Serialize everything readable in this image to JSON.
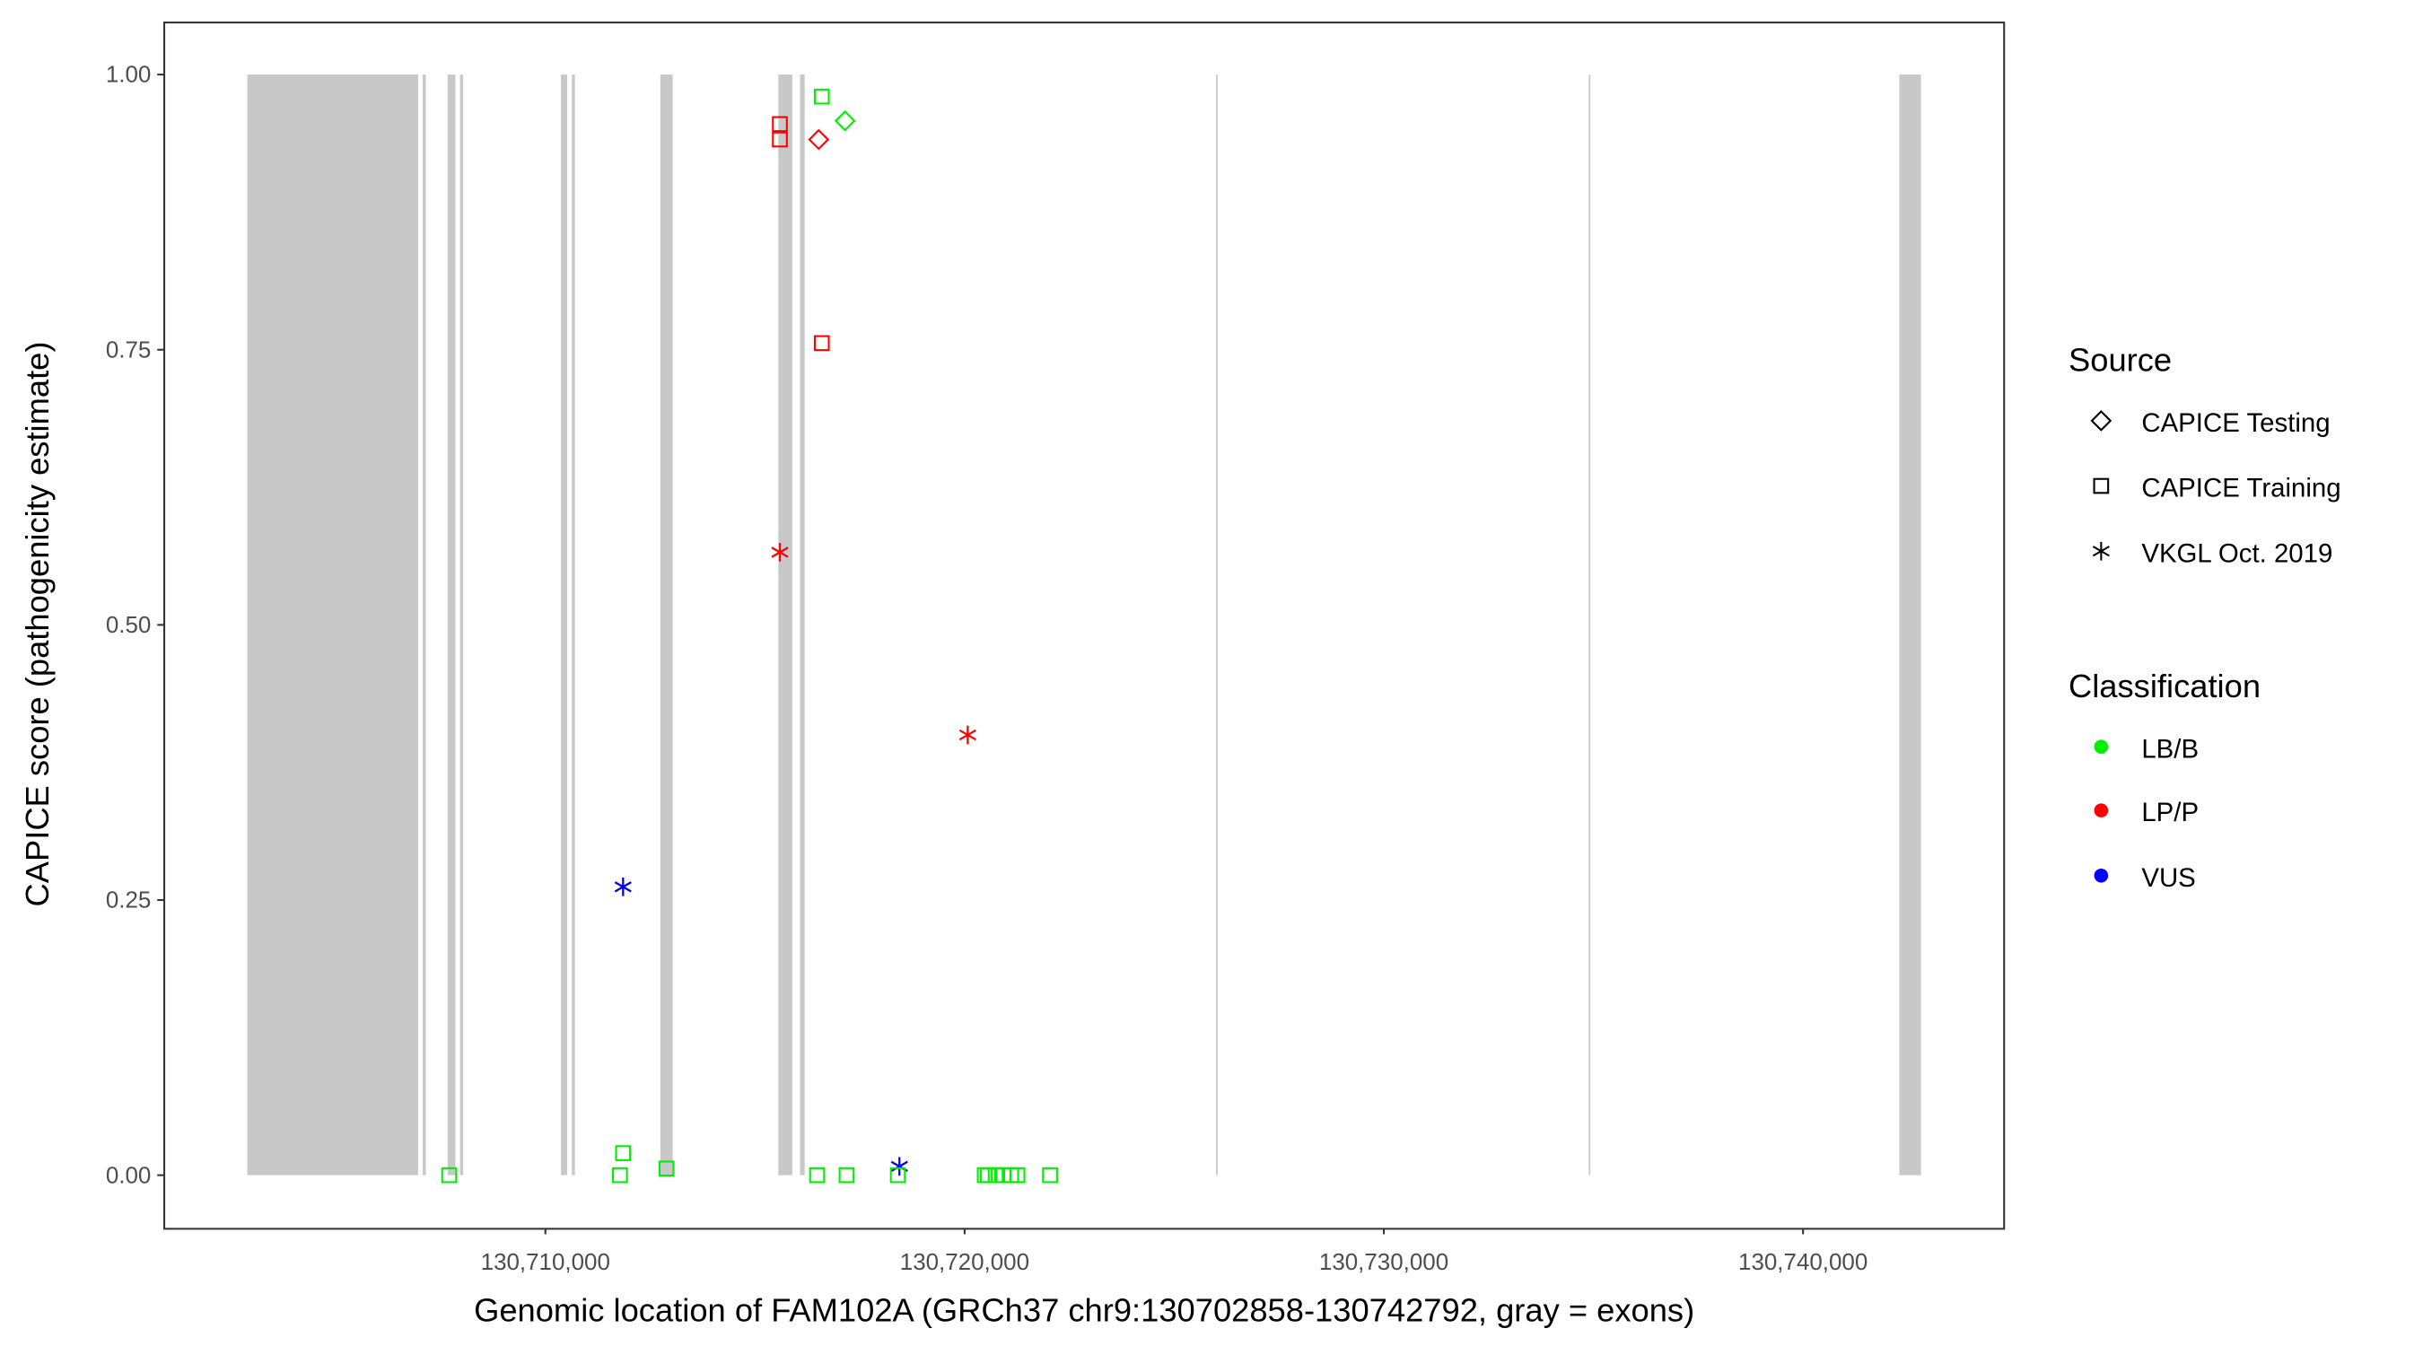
{
  "chart_data": {
    "type": "scatter",
    "title": "",
    "xlabel": "Genomic location of FAM102A (GRCh37 chr9:130702858-130742792, gray = exons)",
    "ylabel": "CAPICE score (pathogenicity estimate)",
    "xlim": [
      130700889,
      130744778
    ],
    "ylim": [
      -0.048,
      1.048
    ],
    "x_ticks": [
      130710000,
      130720000,
      130730000,
      130740000
    ],
    "x_tick_labels": [
      "130,710,000",
      "130,720,000",
      "130,730,000",
      "130,740,000"
    ],
    "y_ticks": [
      0,
      0.25,
      0.5,
      0.75,
      1.0
    ],
    "y_tick_labels": [
      "0.00",
      "0.25",
      "0.50",
      "0.75",
      "1.00"
    ],
    "grid": false,
    "exon_color": "#c8c8c8",
    "exons": [
      [
        130702889,
        130706963
      ],
      [
        130707074,
        130707148
      ],
      [
        130707667,
        130707852
      ],
      [
        130707963,
        130708037
      ],
      [
        130710370,
        130710519
      ],
      [
        130710630,
        130710704
      ],
      [
        130712741,
        130713037
      ],
      [
        130715556,
        130715889
      ],
      [
        130716074,
        130716185
      ],
      [
        130726000,
        130726037
      ],
      [
        130734889,
        130734926
      ],
      [
        130742296,
        130742815
      ]
    ],
    "legend_position": "right",
    "legend": {
      "source": {
        "title": "Source",
        "entries": [
          {
            "label": "CAPICE Testing",
            "shape": "diamond"
          },
          {
            "label": "CAPICE Training",
            "shape": "square"
          },
          {
            "label": "VKGL Oct. 2019",
            "shape": "asterisk"
          }
        ]
      },
      "classification": {
        "title": "Classification",
        "entries": [
          {
            "label": "LB/B",
            "color": "#00ee00"
          },
          {
            "label": "LP/P",
            "color": "#ff0000"
          },
          {
            "label": "VUS",
            "color": "#0000ff"
          }
        ]
      }
    },
    "points": [
      {
        "x": 130707704,
        "y": 0.0,
        "source": "CAPICE Training",
        "class": "LB/B"
      },
      {
        "x": 130711778,
        "y": 0.0,
        "source": "CAPICE Training",
        "class": "LB/B"
      },
      {
        "x": 130711852,
        "y": 0.02,
        "source": "CAPICE Training",
        "class": "LB/B"
      },
      {
        "x": 130712889,
        "y": 0.006,
        "source": "CAPICE Training",
        "class": "LB/B"
      },
      {
        "x": 130715593,
        "y": 0.955,
        "source": "CAPICE Training",
        "class": "LP/P"
      },
      {
        "x": 130715593,
        "y": 0.941,
        "source": "CAPICE Training",
        "class": "LP/P"
      },
      {
        "x": 130716593,
        "y": 0.98,
        "source": "CAPICE Training",
        "class": "LB/B"
      },
      {
        "x": 130716519,
        "y": 0.941,
        "source": "CAPICE Testing",
        "class": "LP/P"
      },
      {
        "x": 130717148,
        "y": 0.958,
        "source": "CAPICE Testing",
        "class": "LB/B"
      },
      {
        "x": 130716593,
        "y": 0.756,
        "source": "CAPICE Training",
        "class": "LP/P"
      },
      {
        "x": 130715593,
        "y": 0.566,
        "source": "VKGL Oct. 2019",
        "class": "LP/P"
      },
      {
        "x": 130720074,
        "y": 0.4,
        "source": "VKGL Oct. 2019",
        "class": "LP/P"
      },
      {
        "x": 130711852,
        "y": 0.262,
        "source": "VKGL Oct. 2019",
        "class": "VUS"
      },
      {
        "x": 130718444,
        "y": 0.008,
        "source": "VKGL Oct. 2019",
        "class": "VUS"
      },
      {
        "x": 130716481,
        "y": 0.0,
        "source": "CAPICE Training",
        "class": "LB/B"
      },
      {
        "x": 130717185,
        "y": 0.0,
        "source": "CAPICE Training",
        "class": "LB/B"
      },
      {
        "x": 130718407,
        "y": 0.0,
        "source": "CAPICE Training",
        "class": "LB/B"
      },
      {
        "x": 130720481,
        "y": 0.0,
        "source": "CAPICE Training",
        "class": "LB/B"
      },
      {
        "x": 130720556,
        "y": 0.0,
        "source": "CAPICE Training",
        "class": "LB/B"
      },
      {
        "x": 130720741,
        "y": 0.0,
        "source": "CAPICE Training",
        "class": "LB/B"
      },
      {
        "x": 130720926,
        "y": 0.0,
        "source": "CAPICE Training",
        "class": "LB/B"
      },
      {
        "x": 130721111,
        "y": 0.0,
        "source": "CAPICE Training",
        "class": "LB/B"
      },
      {
        "x": 130721259,
        "y": 0.0,
        "source": "CAPICE Training",
        "class": "LB/B"
      },
      {
        "x": 130722037,
        "y": 0.0,
        "source": "CAPICE Training",
        "class": "LB/B"
      }
    ]
  }
}
